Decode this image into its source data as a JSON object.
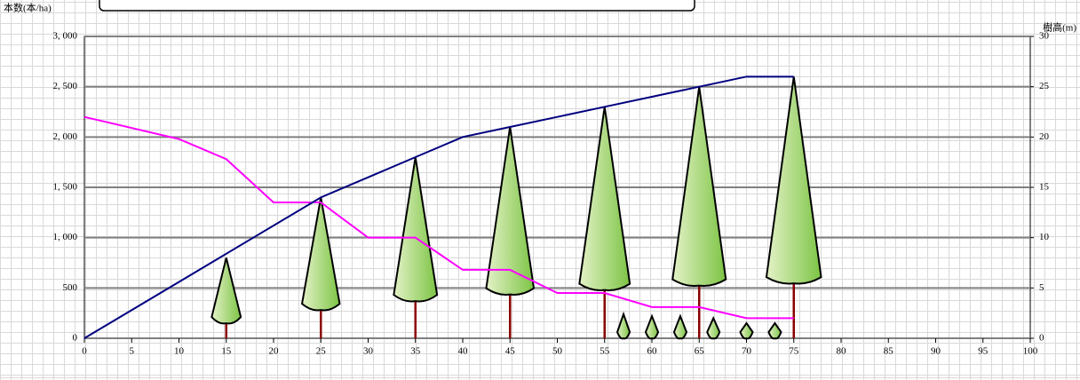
{
  "chart_data": {
    "type": "line",
    "y_label": "本数(本/ha)",
    "y2_label": "樹高(m)",
    "xlim": [
      0,
      100
    ],
    "xticks": [
      0,
      5,
      10,
      15,
      20,
      25,
      30,
      35,
      40,
      45,
      50,
      55,
      60,
      65,
      70,
      75,
      80,
      85,
      90,
      95,
      100
    ],
    "ylim": [
      0,
      3000
    ],
    "yticks": [
      0,
      500,
      {
        "value": 1000,
        "label": "1, 000"
      },
      {
        "value": 1500,
        "label": "1, 500"
      },
      {
        "value": 2000,
        "label": "2, 000"
      },
      {
        "value": 2500,
        "label": "2, 500"
      },
      {
        "value": 3000,
        "label": "3, 000"
      }
    ],
    "y2lim": [
      0,
      30
    ],
    "y2ticks": [
      0,
      5,
      10,
      15,
      20,
      25,
      30
    ],
    "grid": true,
    "series": [
      {
        "color": "#ff00ff",
        "x": [
          0,
          10,
          15,
          20,
          25,
          30,
          35,
          40,
          45,
          50,
          55,
          60,
          65,
          70,
          75
        ],
        "values": [
          2200,
          1980,
          1780,
          1350,
          1350,
          1000,
          1000,
          680,
          680,
          450,
          450,
          310,
          310,
          200,
          200
        ]
      },
      {
        "color": "#000080",
        "axis": "y2",
        "x": [
          0,
          25,
          30,
          35,
          40,
          45,
          50,
          55,
          60,
          65,
          70,
          75
        ],
        "values": [
          0,
          14,
          16,
          18,
          20,
          21,
          22,
          23,
          24,
          25,
          26,
          26
        ]
      }
    ],
    "trees": {
      "axis": "y2",
      "x": [
        15,
        25,
        35,
        45,
        55,
        65,
        75,
        57,
        60,
        63,
        66.5,
        70,
        73
      ],
      "values": [
        8,
        14,
        18,
        21,
        23,
        25,
        26,
        2.4,
        2.2,
        2.2,
        2,
        1.5,
        1.5
      ]
    }
  }
}
